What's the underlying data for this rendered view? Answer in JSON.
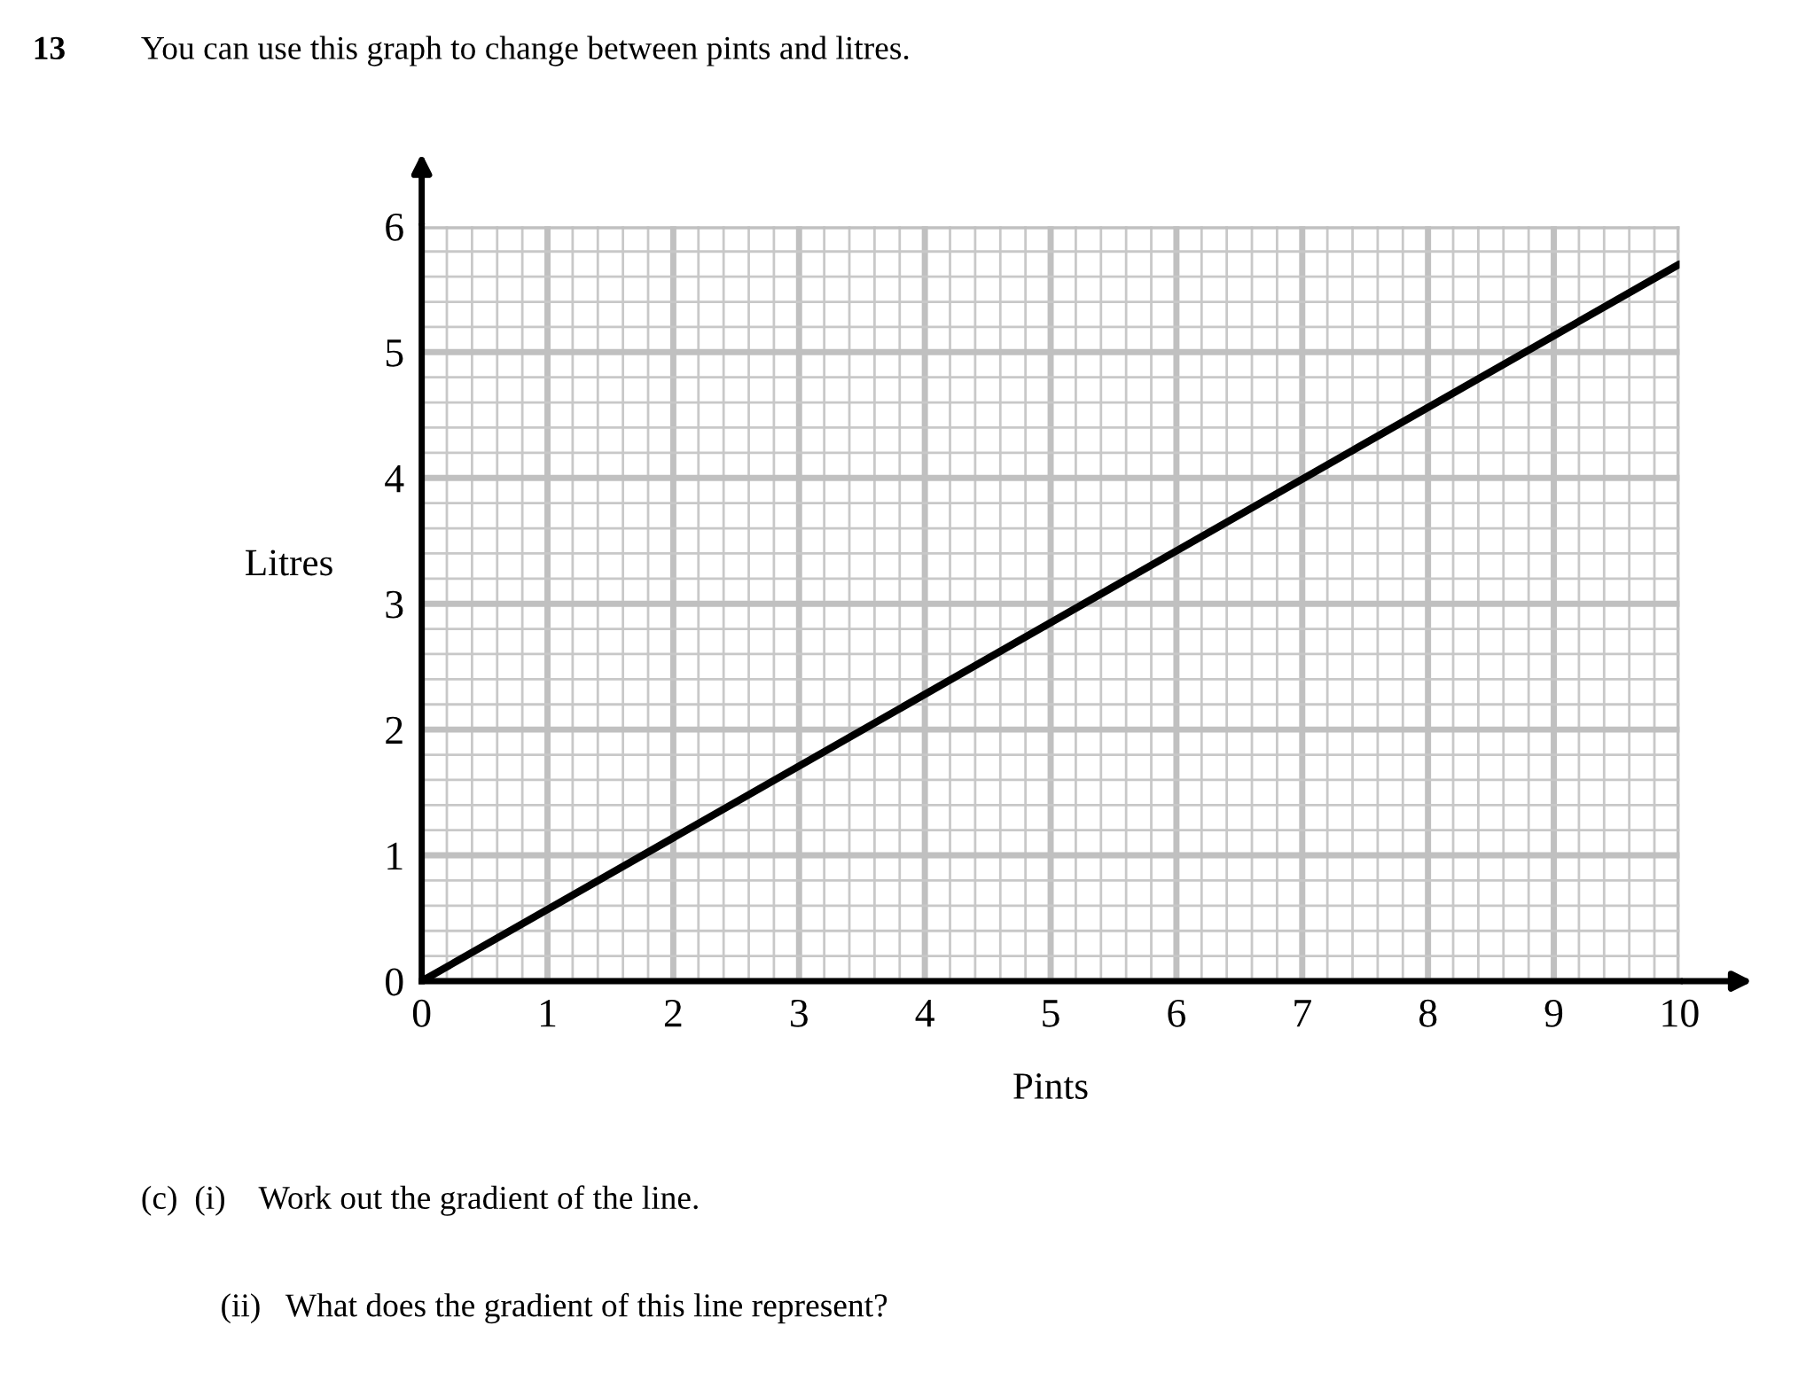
{
  "chart_data": {
    "type": "line",
    "title": "13",
    "subtitle": "You can use this graph to change between pints and litres.",
    "xlabel": "Pints",
    "ylabel": "Litres",
    "x": [
      0,
      10
    ],
    "series": [
      {
        "color": "#000000",
        "values": [
          0,
          5.7
        ]
      }
    ],
    "xlim": [
      0,
      10
    ],
    "ylim": [
      0,
      6
    ],
    "xticks": [
      0,
      1,
      2,
      3,
      4,
      5,
      6,
      7,
      8,
      9,
      10
    ],
    "yticks": [
      0,
      1,
      2,
      3,
      4,
      5,
      6
    ],
    "grid": true,
    "marker": "none",
    "line_style": "solid",
    "annotations": [
      "(c)  (i)    Work out the gradient of the line.",
      "(ii)   What does the gradient of this line represent?"
    ]
  }
}
